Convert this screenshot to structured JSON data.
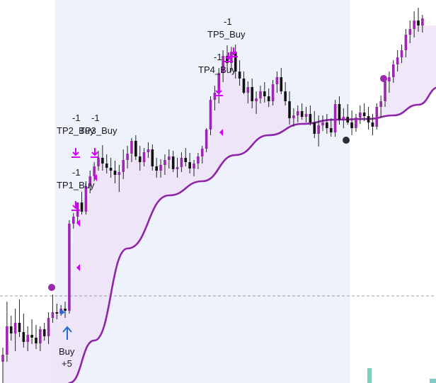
{
  "colors": {
    "background": "#ffffff",
    "highlight_band": "#eef2fc",
    "bull_candle": "#9c27b0",
    "bear_candle": "#111111",
    "wick": "#222222",
    "trend_line": "#8e24aa",
    "trend_fill": "#ede3f7",
    "tp_marker": "#d500f9",
    "buy_arrow": "#1e6fd9",
    "signal_dot_purple": "#9c27b0",
    "signal_dot_dark": "#2a2e39",
    "price_line": "#9e9e9e",
    "bottom_tick": "#80cbc4"
  },
  "icons": {
    "tp_marker": "down-arrow-with-bar-icon",
    "buy_marker": "up-arrow-icon",
    "entry_marker": "left-triangle-icon"
  },
  "annotations": {
    "buy": {
      "label": "Buy",
      "qty": "+5"
    },
    "tp1": {
      "label": "TP1_Buy",
      "qty": "-1"
    },
    "tp2": {
      "label": "TP2_Buy",
      "qty": "-1"
    },
    "tp3": {
      "label": "TP3_Buy",
      "qty": "-1"
    },
    "tp4": {
      "label": "TP4_Buy",
      "qty": "-1"
    },
    "tp5": {
      "label": "TP5_Buy",
      "qty": "-1"
    }
  },
  "chart_data": {
    "type": "candlestick",
    "title": "",
    "xlabel": "",
    "ylabel": "",
    "ylim": [
      0,
      541
    ],
    "note": "No axis scale is printed; prices are in relative chart units (higher = up).",
    "reference_price": 123,
    "candles": [
      {
        "o": 30,
        "h": 50,
        "l": 0,
        "c": 40
      },
      {
        "o": 40,
        "h": 115,
        "l": 30,
        "c": 80
      },
      {
        "o": 80,
        "h": 95,
        "l": 60,
        "c": 70
      },
      {
        "o": 70,
        "h": 105,
        "l": 45,
        "c": 85
      },
      {
        "o": 85,
        "h": 118,
        "l": 65,
        "c": 72
      },
      {
        "o": 72,
        "h": 98,
        "l": 50,
        "c": 58
      },
      {
        "o": 58,
        "h": 80,
        "l": 45,
        "c": 68
      },
      {
        "o": 68,
        "h": 90,
        "l": 55,
        "c": 64
      },
      {
        "o": 64,
        "h": 82,
        "l": 48,
        "c": 56
      },
      {
        "o": 56,
        "h": 80,
        "l": 45,
        "c": 76
      },
      {
        "o": 76,
        "h": 85,
        "l": 60,
        "c": 66
      },
      {
        "o": 66,
        "h": 100,
        "l": 55,
        "c": 92
      },
      {
        "o": 92,
        "h": 125,
        "l": 85,
        "c": 100
      },
      {
        "o": 100,
        "h": 112,
        "l": 90,
        "c": 98
      },
      {
        "o": 98,
        "h": 110,
        "l": 95,
        "c": 105
      },
      {
        "o": 105,
        "h": 115,
        "l": 92,
        "c": 102
      },
      {
        "o": 102,
        "h": 230,
        "l": 98,
        "c": 225
      },
      {
        "o": 225,
        "h": 240,
        "l": 218,
        "c": 235
      },
      {
        "o": 235,
        "h": 250,
        "l": 225,
        "c": 255
      },
      {
        "o": 255,
        "h": 270,
        "l": 238,
        "c": 242
      },
      {
        "o": 242,
        "h": 285,
        "l": 238,
        "c": 278
      },
      {
        "o": 278,
        "h": 300,
        "l": 268,
        "c": 292
      },
      {
        "o": 292,
        "h": 312,
        "l": 285,
        "c": 306
      },
      {
        "o": 306,
        "h": 328,
        "l": 300,
        "c": 318
      },
      {
        "o": 318,
        "h": 336,
        "l": 300,
        "c": 310
      },
      {
        "o": 310,
        "h": 323,
        "l": 296,
        "c": 304
      },
      {
        "o": 304,
        "h": 318,
        "l": 290,
        "c": 300
      },
      {
        "o": 300,
        "h": 314,
        "l": 282,
        "c": 294
      },
      {
        "o": 294,
        "h": 308,
        "l": 270,
        "c": 298
      },
      {
        "o": 298,
        "h": 330,
        "l": 288,
        "c": 315
      },
      {
        "o": 315,
        "h": 335,
        "l": 303,
        "c": 324
      },
      {
        "o": 324,
        "h": 346,
        "l": 312,
        "c": 342
      },
      {
        "o": 342,
        "h": 350,
        "l": 315,
        "c": 320
      },
      {
        "o": 320,
        "h": 335,
        "l": 300,
        "c": 312
      },
      {
        "o": 312,
        "h": 332,
        "l": 306,
        "c": 326
      },
      {
        "o": 326,
        "h": 340,
        "l": 318,
        "c": 330
      },
      {
        "o": 330,
        "h": 337,
        "l": 300,
        "c": 306
      },
      {
        "o": 306,
        "h": 318,
        "l": 290,
        "c": 300
      },
      {
        "o": 300,
        "h": 316,
        "l": 290,
        "c": 308
      },
      {
        "o": 308,
        "h": 323,
        "l": 294,
        "c": 315
      },
      {
        "o": 315,
        "h": 330,
        "l": 303,
        "c": 320
      },
      {
        "o": 320,
        "h": 328,
        "l": 298,
        "c": 302
      },
      {
        "o": 302,
        "h": 318,
        "l": 290,
        "c": 305
      },
      {
        "o": 305,
        "h": 326,
        "l": 298,
        "c": 318
      },
      {
        "o": 318,
        "h": 332,
        "l": 306,
        "c": 312
      },
      {
        "o": 312,
        "h": 325,
        "l": 296,
        "c": 303
      },
      {
        "o": 303,
        "h": 315,
        "l": 292,
        "c": 310
      },
      {
        "o": 310,
        "h": 325,
        "l": 302,
        "c": 320
      },
      {
        "o": 320,
        "h": 335,
        "l": 310,
        "c": 331
      },
      {
        "o": 331,
        "h": 360,
        "l": 326,
        "c": 358
      },
      {
        "o": 358,
        "h": 405,
        "l": 350,
        "c": 400
      },
      {
        "o": 400,
        "h": 420,
        "l": 385,
        "c": 410
      },
      {
        "o": 410,
        "h": 445,
        "l": 395,
        "c": 438
      },
      {
        "o": 438,
        "h": 470,
        "l": 425,
        "c": 462
      },
      {
        "o": 462,
        "h": 477,
        "l": 445,
        "c": 452
      },
      {
        "o": 452,
        "h": 475,
        "l": 440,
        "c": 468
      },
      {
        "o": 468,
        "h": 478,
        "l": 430,
        "c": 440
      },
      {
        "o": 440,
        "h": 456,
        "l": 420,
        "c": 430
      },
      {
        "o": 430,
        "h": 440,
        "l": 408,
        "c": 410
      },
      {
        "o": 410,
        "h": 426,
        "l": 395,
        "c": 418
      },
      {
        "o": 418,
        "h": 430,
        "l": 388,
        "c": 398
      },
      {
        "o": 398,
        "h": 412,
        "l": 380,
        "c": 402
      },
      {
        "o": 402,
        "h": 420,
        "l": 395,
        "c": 412
      },
      {
        "o": 412,
        "h": 425,
        "l": 396,
        "c": 405
      },
      {
        "o": 405,
        "h": 416,
        "l": 390,
        "c": 398
      },
      {
        "o": 398,
        "h": 428,
        "l": 392,
        "c": 422
      },
      {
        "o": 422,
        "h": 440,
        "l": 410,
        "c": 432
      },
      {
        "o": 432,
        "h": 445,
        "l": 408,
        "c": 412
      },
      {
        "o": 412,
        "h": 425,
        "l": 392,
        "c": 398
      },
      {
        "o": 398,
        "h": 412,
        "l": 365,
        "c": 374
      },
      {
        "o": 374,
        "h": 388,
        "l": 362,
        "c": 378
      },
      {
        "o": 378,
        "h": 392,
        "l": 368,
        "c": 384
      },
      {
        "o": 384,
        "h": 395,
        "l": 372,
        "c": 376
      },
      {
        "o": 376,
        "h": 390,
        "l": 368,
        "c": 380
      },
      {
        "o": 380,
        "h": 392,
        "l": 364,
        "c": 368
      },
      {
        "o": 368,
        "h": 384,
        "l": 346,
        "c": 352
      },
      {
        "o": 352,
        "h": 378,
        "l": 334,
        "c": 364
      },
      {
        "o": 364,
        "h": 378,
        "l": 356,
        "c": 368
      },
      {
        "o": 368,
        "h": 380,
        "l": 352,
        "c": 360
      },
      {
        "o": 360,
        "h": 374,
        "l": 348,
        "c": 354
      },
      {
        "o": 354,
        "h": 400,
        "l": 348,
        "c": 394
      },
      {
        "o": 394,
        "h": 405,
        "l": 365,
        "c": 372
      },
      {
        "o": 372,
        "h": 388,
        "l": 360,
        "c": 376
      },
      {
        "o": 376,
        "h": 394,
        "l": 365,
        "c": 368
      },
      {
        "o": 368,
        "h": 385,
        "l": 350,
        "c": 360
      },
      {
        "o": 360,
        "h": 380,
        "l": 355,
        "c": 375
      },
      {
        "o": 375,
        "h": 392,
        "l": 366,
        "c": 382
      },
      {
        "o": 382,
        "h": 395,
        "l": 370,
        "c": 377
      },
      {
        "o": 377,
        "h": 390,
        "l": 358,
        "c": 368
      },
      {
        "o": 368,
        "h": 380,
        "l": 350,
        "c": 362
      },
      {
        "o": 362,
        "h": 395,
        "l": 358,
        "c": 390
      },
      {
        "o": 390,
        "h": 406,
        "l": 375,
        "c": 398
      },
      {
        "o": 398,
        "h": 430,
        "l": 390,
        "c": 426
      },
      {
        "o": 426,
        "h": 440,
        "l": 410,
        "c": 432
      },
      {
        "o": 432,
        "h": 456,
        "l": 424,
        "c": 450
      },
      {
        "o": 450,
        "h": 470,
        "l": 440,
        "c": 460
      },
      {
        "o": 460,
        "h": 478,
        "l": 452,
        "c": 470
      },
      {
        "o": 470,
        "h": 500,
        "l": 460,
        "c": 492
      },
      {
        "o": 492,
        "h": 512,
        "l": 480,
        "c": 500
      },
      {
        "o": 500,
        "h": 525,
        "l": 488,
        "c": 512
      },
      {
        "o": 512,
        "h": 530,
        "l": 496,
        "c": 505
      },
      {
        "o": 505,
        "h": 520,
        "l": 495,
        "c": 515
      }
    ],
    "trend_line": [
      {
        "i": 16,
        "v": 0
      },
      {
        "i": 22,
        "v": 60
      },
      {
        "i": 30,
        "v": 190
      },
      {
        "i": 40,
        "v": 265
      },
      {
        "i": 48,
        "v": 285
      },
      {
        "i": 56,
        "v": 322
      },
      {
        "i": 64,
        "v": 350
      },
      {
        "i": 72,
        "v": 366
      },
      {
        "i": 80,
        "v": 372
      },
      {
        "i": 88,
        "v": 373
      },
      {
        "i": 94,
        "v": 378
      },
      {
        "i": 100,
        "v": 393
      },
      {
        "i": 105,
        "v": 418
      }
    ],
    "highlight_range": [
      13,
      83
    ],
    "signals": [
      {
        "type": "dot",
        "color": "purple",
        "i": 11,
        "v": 135
      },
      {
        "type": "dot",
        "color": "dark",
        "i": 77,
        "v": 343
      },
      {
        "type": "dot",
        "color": "purple",
        "i": 86,
        "v": 430
      },
      {
        "type": "buy",
        "i": 15
      },
      {
        "type": "tp",
        "i": 17,
        "tp": "tp1"
      },
      {
        "type": "tp",
        "i": 17,
        "tp": "tp2"
      },
      {
        "type": "tp",
        "i": 21,
        "tp": "tp3"
      },
      {
        "type": "tp",
        "i": 49,
        "tp": "tp4"
      },
      {
        "type": "tp",
        "i": 51,
        "tp": "tp5"
      },
      {
        "type": "entry",
        "i": 17,
        "v": 162
      },
      {
        "type": "entry",
        "i": 17,
        "v": 225
      },
      {
        "type": "entry",
        "i": 20,
        "v": 290
      },
      {
        "type": "entry",
        "i": 49,
        "v": 355
      },
      {
        "type": "entry",
        "i": 13,
        "v": 100
      }
    ]
  }
}
